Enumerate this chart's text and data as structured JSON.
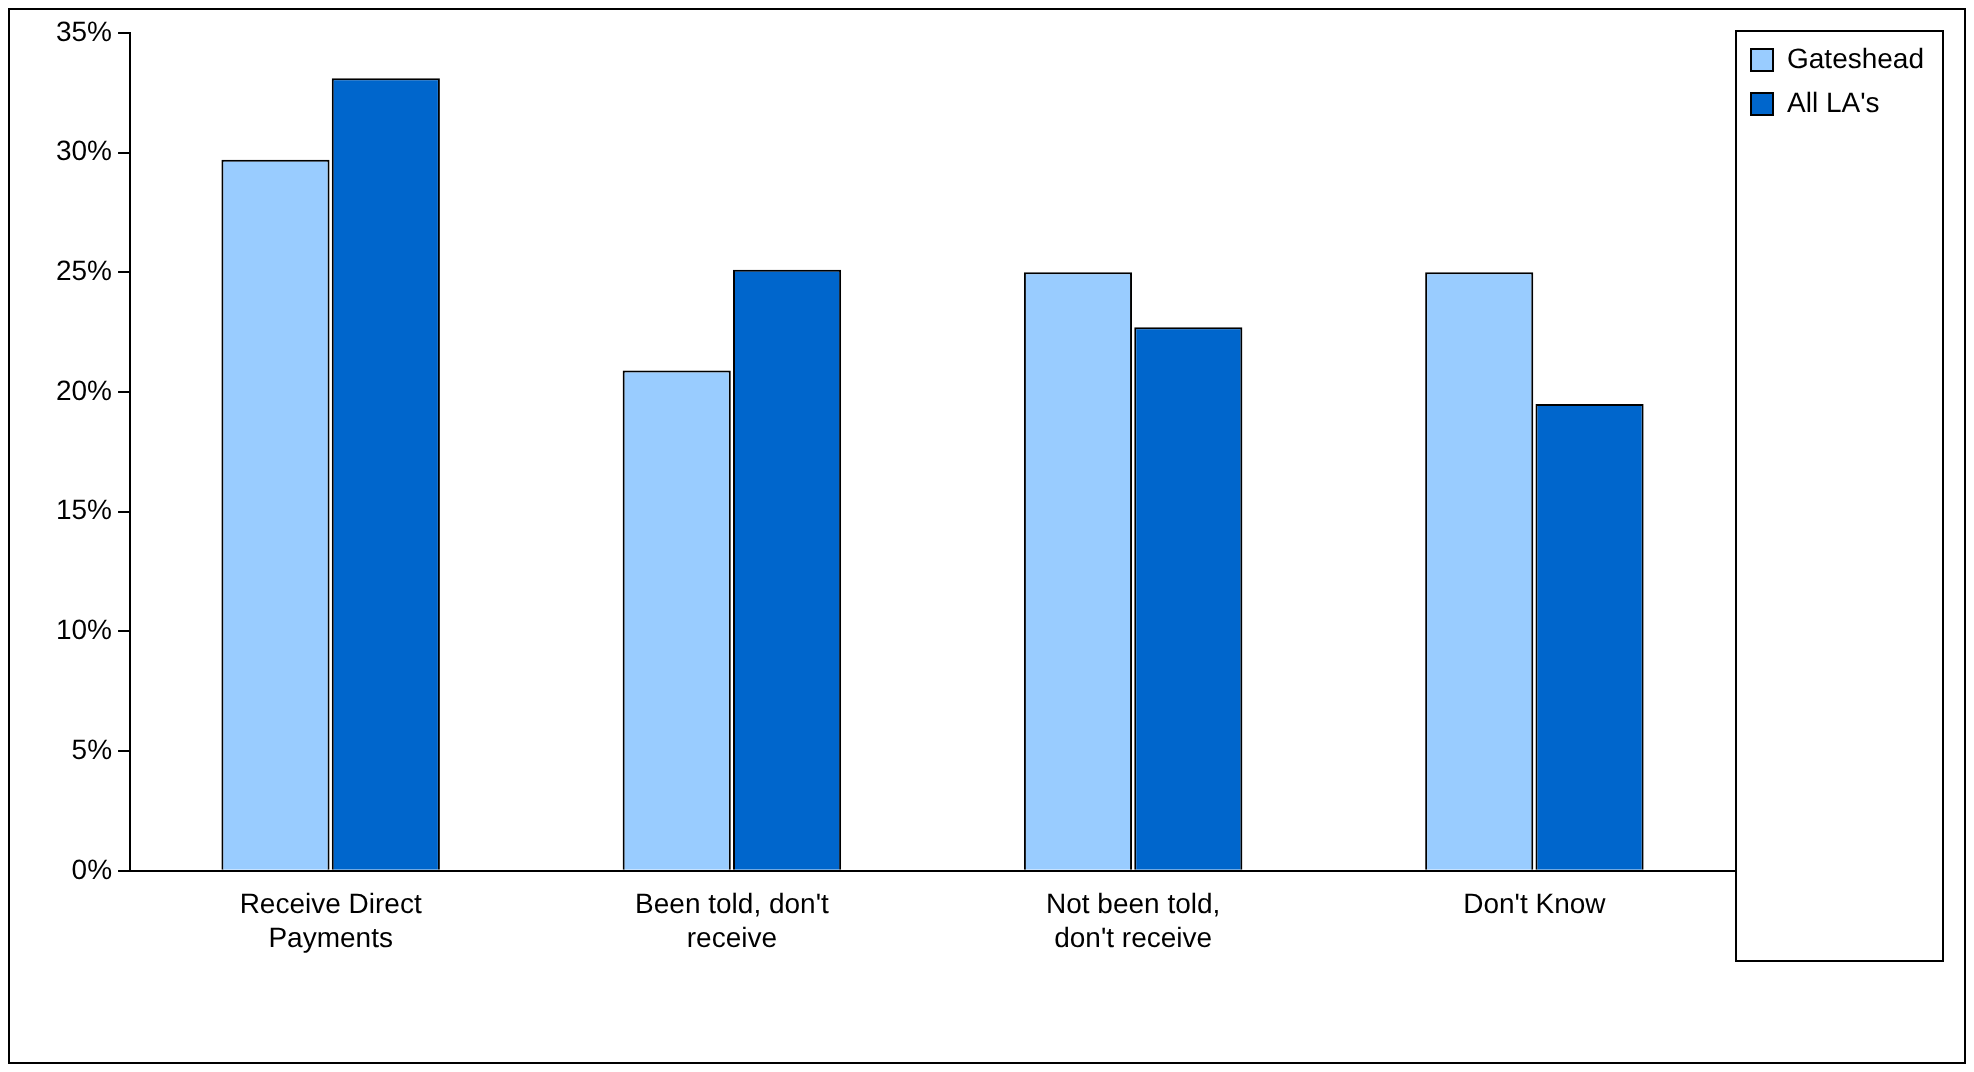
{
  "chart_data": {
    "type": "bar",
    "categories": [
      "Receive Direct Payments",
      "Been told, don't receive",
      "Not been told, don't receive",
      "Don't Know"
    ],
    "series": [
      {
        "name": "Gateshead",
        "color": "#99ccff",
        "values": [
          29.7,
          20.9,
          25,
          25
        ]
      },
      {
        "name": "All LA's",
        "color": "#0066cc",
        "values": [
          33.1,
          25.1,
          22.7,
          19.5
        ]
      }
    ],
    "ylim": [
      0,
      35
    ],
    "yticks": [
      {
        "value": 0,
        "label": "0%"
      },
      {
        "value": 5,
        "label": "5%"
      },
      {
        "value": 10,
        "label": "10%"
      },
      {
        "value": 15,
        "label": "15%"
      },
      {
        "value": 20,
        "label": "20%"
      },
      {
        "value": 25,
        "label": "25%"
      },
      {
        "value": 30,
        "label": "30%"
      },
      {
        "value": 35,
        "label": "35%"
      }
    ],
    "grid": false,
    "legend": "top right"
  }
}
